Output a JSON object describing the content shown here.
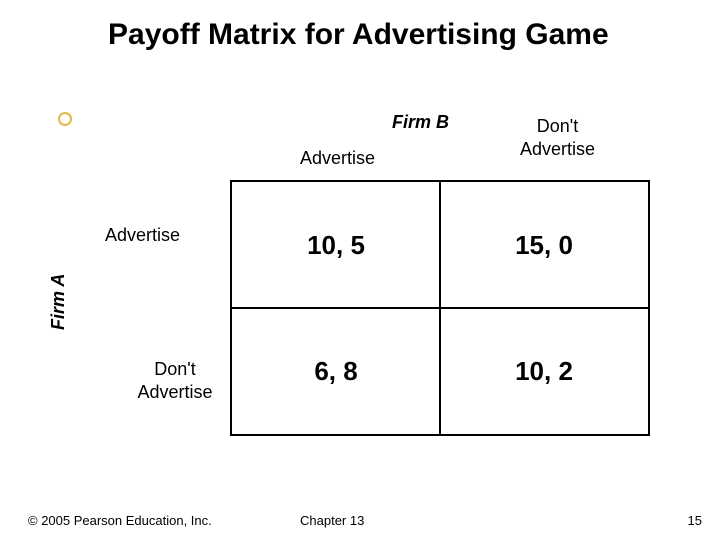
{
  "title": "Payoff Matrix for Advertising Game",
  "players": {
    "col": "Firm B",
    "row": "Firm A"
  },
  "strategies": {
    "col": {
      "adv": "Advertise",
      "dont_line1": "Don't",
      "dont_line2": "Advertise"
    },
    "row": {
      "adv": "Advertise",
      "dont_line1": "Don't",
      "dont_line2": "Advertise"
    }
  },
  "matrix": {
    "type": "table",
    "cells": {
      "r0c0": "10, 5",
      "r0c1": "15, 0",
      "r1c0": "6, 8",
      "r1c1": "10, 2"
    },
    "border_color": "#000000",
    "cell_fontsize": 26,
    "cell_fontweight": "bold"
  },
  "bullet": {
    "border_color": "#e0b848",
    "fill": "#ffffff"
  },
  "footer": {
    "copyright": "© 2005 Pearson Education, Inc.",
    "chapter": "Chapter 13",
    "page": "15"
  },
  "background_color": "#ffffff",
  "text_color": "#000000",
  "title_fontsize": 30
}
